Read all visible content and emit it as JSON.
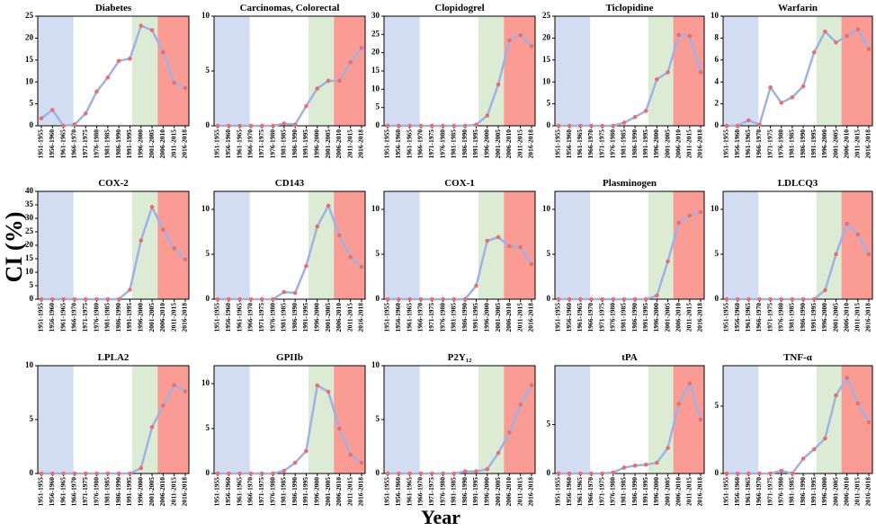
{
  "ylabel": "CI (%)",
  "xlabel": "Year",
  "line_color": "#9fb1e6",
  "marker_color": "#ea6f6c",
  "chart_data": [
    {
      "type": "line",
      "title": "Diabetes",
      "categories": [
        "1951-1955",
        "1956-1960",
        "1961-1965",
        "1966-1970",
        "1971-1975",
        "1976-1980",
        "1981-1985",
        "1986-1990",
        "1991-1995",
        "1996-2000",
        "2001-2005",
        "2006-2010",
        "2011-2015",
        "2016-2018"
      ],
      "values": [
        1.7,
        3.6,
        0,
        0.3,
        2.8,
        7.8,
        11,
        14.8,
        15.3,
        22.8,
        21.8,
        16.8,
        9.8,
        8.6
      ],
      "ylim": [
        0,
        25
      ],
      "yticks": [
        0,
        5,
        10,
        15,
        20,
        25
      ]
    },
    {
      "type": "line",
      "title": "Carcinomas, Colorectal",
      "categories": [
        "1951-1955",
        "1956-1960",
        "1961-1965",
        "1966-1970",
        "1971-1975",
        "1976-1980",
        "1981-1985",
        "1986-1990",
        "1991-1995",
        "1996-2000",
        "2001-2005",
        "2006-2010",
        "2011-2015",
        "2016-2018"
      ],
      "values": [
        0,
        0,
        0,
        0,
        0,
        0,
        0.2,
        0.1,
        1.8,
        3.4,
        4.1,
        4.1,
        5.8,
        7.1
      ],
      "ylim": [
        0,
        10
      ],
      "yticks": [
        0,
        5,
        10
      ]
    },
    {
      "type": "line",
      "title": "Clopidogrel",
      "categories": [
        "1951-1955",
        "1956-1960",
        "1961-1965",
        "1966-1970",
        "1971-1975",
        "1976-1980",
        "1981-1985",
        "1986-1990",
        "1991-1995",
        "1996-2000",
        "2001-2005",
        "2006-2010",
        "2011-2015",
        "2016-2018"
      ],
      "values": [
        0,
        0,
        0,
        0,
        0,
        0,
        0,
        0,
        0.3,
        2.8,
        11.3,
        23.4,
        24.8,
        21.8
      ],
      "ylim": [
        0,
        30
      ],
      "yticks": [
        0,
        5,
        10,
        15,
        20,
        25,
        30
      ]
    },
    {
      "type": "line",
      "title": "Ticlopidine",
      "categories": [
        "1951-1955",
        "1956-1960",
        "1961-1965",
        "1966-1970",
        "1971-1975",
        "1976-1980",
        "1981-1985",
        "1986-1990",
        "1991-1995",
        "1996-2000",
        "2001-2005",
        "2006-2010",
        "2011-2015",
        "2016-2018"
      ],
      "values": [
        0,
        0,
        0,
        0,
        0,
        0,
        0.7,
        2,
        3.4,
        10.6,
        12.2,
        20.7,
        20.5,
        12.2
      ],
      "ylim": [
        0,
        25
      ],
      "yticks": [
        0,
        5,
        10,
        15,
        20,
        25
      ]
    },
    {
      "type": "line",
      "title": "Warfarin",
      "categories": [
        "1951-1955",
        "1956-1960",
        "1961-1965",
        "1966-1970",
        "1971-1975",
        "1976-1980",
        "1981-1985",
        "1986-1990",
        "1991-1995",
        "1996-2000",
        "2001-2005",
        "2006-2010",
        "2011-2015",
        "2016-2018"
      ],
      "values": [
        0,
        0,
        0.5,
        0.1,
        3.5,
        2.1,
        2.6,
        3.6,
        6.7,
        8.6,
        7.6,
        8.2,
        8.8,
        7.0
      ],
      "ylim": [
        0,
        10
      ],
      "yticks": [
        0,
        2,
        4,
        6,
        8,
        10
      ]
    },
    {
      "type": "line",
      "title": "COX-2",
      "categories": [
        "1951-1955",
        "1956-1960",
        "1961-1965",
        "1966-1970",
        "1971-1975",
        "1976-1980",
        "1981-1985",
        "1986-1990",
        "1991-1995",
        "1996-2000",
        "2001-2005",
        "2006-2010",
        "2011-2015",
        "2016-2018"
      ],
      "values": [
        0,
        0,
        0,
        0,
        0,
        0,
        0,
        0,
        3.5,
        21.8,
        34.2,
        25.8,
        18.9,
        14.7
      ],
      "ylim": [
        0,
        40
      ],
      "yticks": [
        0,
        5,
        10,
        15,
        20,
        25,
        30,
        35,
        40
      ]
    },
    {
      "type": "line",
      "title": "CD143",
      "categories": [
        "1951-1955",
        "1956-1960",
        "1961-1965",
        "1966-1970",
        "1971-1975",
        "1976-1980",
        "1981-1985",
        "1986-1990",
        "1991-1995",
        "1996-2000",
        "2001-2005",
        "2006-2010",
        "2011-2015",
        "2016-2018"
      ],
      "values": [
        0,
        0,
        0,
        0,
        0,
        0,
        0.8,
        0.7,
        3.7,
        8.1,
        10.4,
        7.1,
        4.7,
        3.6
      ],
      "ylim": [
        0,
        12
      ],
      "yticks": [
        0,
        5,
        10
      ]
    },
    {
      "type": "line",
      "title": "COX-1",
      "categories": [
        "1951-1955",
        "1956-1960",
        "1961-1965",
        "1966-1970",
        "1971-1975",
        "1976-1980",
        "1981-1985",
        "1986-1990",
        "1991-1995",
        "1996-2000",
        "2001-2005",
        "2006-2010",
        "2011-2015",
        "2016-2018"
      ],
      "values": [
        0,
        0,
        0,
        0,
        0,
        0,
        0,
        0,
        1.5,
        6.5,
        6.9,
        5.9,
        5.8,
        3.9
      ],
      "ylim": [
        0,
        12
      ],
      "yticks": [
        0,
        5,
        10
      ]
    },
    {
      "type": "line",
      "title": "Plasminogen",
      "categories": [
        "1951-1955",
        "1956-1960",
        "1961-1965",
        "1966-1970",
        "1971-1975",
        "1976-1980",
        "1981-1985",
        "1986-1990",
        "1991-1995",
        "1996-2000",
        "2001-2005",
        "2006-2010",
        "2011-2015",
        "2016-2018"
      ],
      "values": [
        0,
        0,
        0,
        0,
        0,
        0,
        0,
        0,
        0,
        0.4,
        4.2,
        8.5,
        9.3,
        9.7
      ],
      "ylim": [
        0,
        12
      ],
      "yticks": [
        0,
        5,
        10
      ]
    },
    {
      "type": "line",
      "title": "LDLCQ3",
      "categories": [
        "1951-1955",
        "1956-1960",
        "1961-1965",
        "1966-1970",
        "1971-1975",
        "1976-1980",
        "1981-1985",
        "1986-1990",
        "1991-1995",
        "1996-2000",
        "2001-2005",
        "2006-2010",
        "2011-2015",
        "2016-2018"
      ],
      "values": [
        0,
        0,
        0,
        0,
        0,
        0,
        0,
        0,
        0,
        1,
        5,
        8.4,
        7.2,
        5
      ],
      "ylim": [
        0,
        12
      ],
      "yticks": [
        0,
        5,
        10
      ]
    },
    {
      "type": "line",
      "title": "LPLA2",
      "categories": [
        "1951-1955",
        "1956-1960",
        "1961-1965",
        "1966-1970",
        "1971-1975",
        "1976-1980",
        "1981-1985",
        "1986-1990",
        "1991-1995",
        "1996-2000",
        "2001-2005",
        "2006-2010",
        "2011-2015",
        "2016-2018"
      ],
      "values": [
        0,
        0,
        0,
        0,
        0,
        0,
        0,
        0,
        0,
        0.5,
        4.3,
        6.3,
        8.2,
        7.6
      ],
      "ylim": [
        0,
        10
      ],
      "yticks": [
        0,
        5,
        10
      ]
    },
    {
      "type": "line",
      "title": "GPIIb",
      "categories": [
        "1951-1955",
        "1956-1960",
        "1961-1965",
        "1966-1970",
        "1971-1975",
        "1976-1980",
        "1981-1985",
        "1986-1990",
        "1991-1995",
        "1996-2000",
        "2001-2005",
        "2006-2010",
        "2011-2015",
        "2016-2018"
      ],
      "values": [
        0,
        0,
        0,
        0,
        0,
        0,
        0.3,
        1.2,
        2.5,
        9.8,
        9.1,
        5,
        2.1,
        1.2
      ],
      "ylim": [
        0,
        12
      ],
      "yticks": [
        0,
        5,
        10
      ]
    },
    {
      "type": "line",
      "title": "P2Y₁₂",
      "categories": [
        "1951-1955",
        "1956-1960",
        "1961-1965",
        "1966-1970",
        "1971-1975",
        "1976-1980",
        "1981-1985",
        "1986-1990",
        "1991-1995",
        "1996-2000",
        "2001-2005",
        "2006-2010",
        "2011-2015",
        "2016-2018"
      ],
      "values": [
        0,
        0,
        0,
        0,
        0,
        0,
        0,
        0.2,
        0.2,
        0.4,
        1.9,
        3.8,
        6.4,
        8.2
      ],
      "ylim": [
        0,
        10
      ],
      "yticks": [
        0,
        5,
        10
      ]
    },
    {
      "type": "line",
      "title": "tPA",
      "categories": [
        "1951-1955",
        "1956-1960",
        "1961-1965",
        "1966-1970",
        "1971-1975",
        "1976-1980",
        "1981-1985",
        "1986-1990",
        "1991-1995",
        "1996-2000",
        "2001-2005",
        "2006-2010",
        "2011-2015",
        "2016-2018"
      ],
      "values": [
        0,
        0,
        0,
        0,
        0,
        0.1,
        0.6,
        0.8,
        0.9,
        1.1,
        2.6,
        7.1,
        9.2,
        5.5
      ],
      "ylim": [
        0,
        11
      ],
      "yticks": [
        0,
        5
      ]
    },
    {
      "type": "line",
      "title": "TNF-α",
      "categories": [
        "1951-1955",
        "1956-1960",
        "1961-1965",
        "1966-1970",
        "1971-1975",
        "1976-1980",
        "1981-1985",
        "1986-1990",
        "1991-1995",
        "1996-2000",
        "2001-2005",
        "2006-2010",
        "2011-2015",
        "2016-2018"
      ],
      "values": [
        0,
        0,
        0,
        0,
        0,
        0.2,
        0,
        1.1,
        1.8,
        2.6,
        5.8,
        7.1,
        5.2,
        3.8
      ],
      "ylim": [
        0,
        8
      ],
      "yticks": [
        0,
        5
      ]
    }
  ]
}
